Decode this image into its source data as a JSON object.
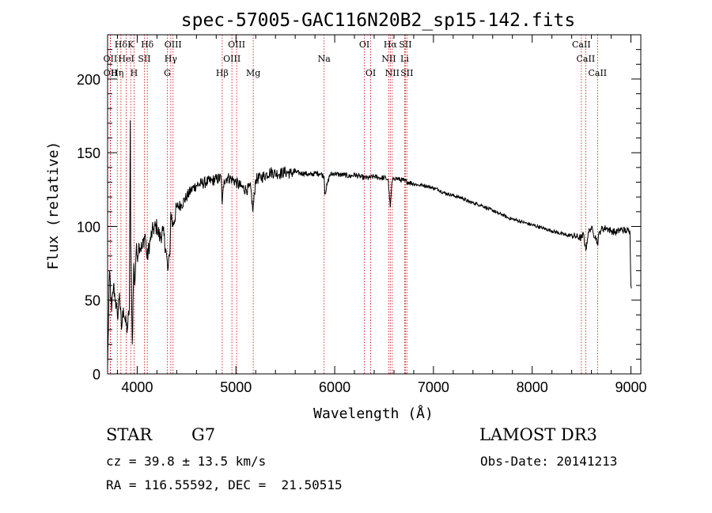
{
  "chart_data": {
    "type": "line",
    "title": "spec-57005-GAC116N20B2_sp15-142.fits",
    "xlabel": "Wavelength (Å)",
    "ylabel": "Flux (relative)",
    "xlim": [
      3700,
      9100
    ],
    "ylim": [
      0,
      230
    ],
    "xticks": [
      4000,
      5000,
      6000,
      7000,
      8000,
      9000
    ],
    "yticks": [
      0,
      50,
      100,
      150,
      200
    ],
    "spectrum": {
      "x": [
        3700,
        3720,
        3740,
        3760,
        3780,
        3800,
        3820,
        3840,
        3860,
        3880,
        3900,
        3920,
        3930,
        3935,
        3950,
        3965,
        3975,
        3990,
        4000,
        4020,
        4050,
        4080,
        4100,
        4130,
        4160,
        4200,
        4230,
        4260,
        4290,
        4310,
        4330,
        4340,
        4360,
        4400,
        4450,
        4500,
        4550,
        4600,
        4650,
        4700,
        4750,
        4800,
        4850,
        4861,
        4880,
        4920,
        4960,
        5000,
        5050,
        5100,
        5150,
        5172,
        5200,
        5250,
        5300,
        5350,
        5400,
        5450,
        5500,
        5550,
        5600,
        5650,
        5700,
        5750,
        5800,
        5850,
        5893,
        5900,
        5950,
        6000,
        6050,
        6100,
        6150,
        6200,
        6250,
        6300,
        6350,
        6400,
        6450,
        6500,
        6540,
        6563,
        6580,
        6600,
        6650,
        6700,
        6750,
        6800,
        6850,
        6900,
        6950,
        7000,
        7050,
        7100,
        7150,
        7200,
        7250,
        7300,
        7350,
        7400,
        7450,
        7500,
        7550,
        7600,
        7650,
        7700,
        7750,
        7800,
        7850,
        7900,
        7950,
        8000,
        8050,
        8100,
        8150,
        8200,
        8250,
        8300,
        8350,
        8400,
        8450,
        8500,
        8520,
        8542,
        8560,
        8580,
        8600,
        8620,
        8640,
        8662,
        8680,
        8700,
        8750,
        8800,
        8850,
        8900,
        8950,
        8990,
        9000,
        9005
      ],
      "y": [
        5,
        70,
        42,
        60,
        50,
        38,
        55,
        30,
        45,
        35,
        30,
        45,
        172,
        90,
        20,
        75,
        60,
        85,
        80,
        88,
        85,
        95,
        78,
        90,
        98,
        100,
        92,
        97,
        85,
        70,
        80,
        110,
        100,
        113,
        115,
        120,
        125,
        128,
        129,
        130,
        131,
        132,
        133,
        115,
        132,
        133,
        132,
        130,
        127,
        125,
        126,
        110,
        132,
        133,
        135,
        137,
        136,
        136,
        137,
        136,
        137,
        136,
        136,
        135,
        136,
        136,
        134,
        122,
        135,
        136,
        135,
        135,
        134,
        135,
        134,
        133,
        133,
        134,
        133,
        133,
        132,
        113,
        130,
        133,
        132,
        131,
        130,
        129,
        128,
        128,
        127,
        126,
        125,
        123,
        122,
        121,
        120,
        119,
        117,
        116,
        115,
        114,
        112,
        111,
        109,
        108,
        106,
        105,
        104,
        103,
        102,
        101,
        100,
        99,
        98,
        97,
        96,
        95,
        94,
        94,
        93,
        92,
        95,
        84,
        92,
        98,
        99,
        95,
        94,
        88,
        96,
        98,
        99,
        97,
        96,
        98,
        97,
        97,
        60,
        58
      ]
    },
    "lines": [
      {
        "label": "Hδ",
        "x": 3835,
        "row": 1
      },
      {
        "label": "K",
        "x": 3934,
        "row": 1
      },
      {
        "label": "Hδ",
        "x": 4102,
        "row": 1
      },
      {
        "label": "OIII",
        "x": 4363,
        "row": 1
      },
      {
        "label": "OIII",
        "x": 5007,
        "row": 1
      },
      {
        "label": "OI",
        "x": 6300,
        "row": 1
      },
      {
        "label": "Hα",
        "x": 6563,
        "row": 1
      },
      {
        "label": "SII",
        "x": 6716,
        "row": 1
      },
      {
        "label": "CaII",
        "x": 8498,
        "row": 1
      },
      {
        "label": "OII",
        "x": 3727,
        "row": 2
      },
      {
        "label": "HeI",
        "x": 3889,
        "row": 2
      },
      {
        "label": "SII",
        "x": 4072,
        "row": 2
      },
      {
        "label": "Hγ",
        "x": 4340,
        "row": 2
      },
      {
        "label": "OIII",
        "x": 4959,
        "row": 2
      },
      {
        "label": "Na",
        "x": 5893,
        "row": 2
      },
      {
        "label": "NII",
        "x": 6548,
        "row": 2
      },
      {
        "label": "Li",
        "x": 6708,
        "row": 2
      },
      {
        "label": "CaII",
        "x": 8542,
        "row": 2
      },
      {
        "label": "OII",
        "x": 3729,
        "row": 3
      },
      {
        "label": "Hη",
        "x": 3798,
        "row": 3
      },
      {
        "label": "H",
        "x": 3968,
        "row": 3
      },
      {
        "label": "G",
        "x": 4305,
        "row": 3
      },
      {
        "label": "Hβ",
        "x": 4861,
        "row": 3
      },
      {
        "label": "Mg",
        "x": 5175,
        "row": 3
      },
      {
        "label": "OI",
        "x": 6364,
        "row": 3
      },
      {
        "label": "NII",
        "x": 6583,
        "row": 3
      },
      {
        "label": "SII",
        "x": 6731,
        "row": 3
      },
      {
        "label": "CaII",
        "x": 8662,
        "row": 3
      }
    ],
    "marker_lines": [
      3727,
      3729,
      3798,
      3835,
      3889,
      3934,
      3968,
      4072,
      4102,
      4305,
      4340,
      4363,
      4861,
      4959,
      5007,
      5175,
      5893,
      6300,
      6364,
      6548,
      6563,
      6583,
      6708,
      6716,
      6731,
      8498,
      8542,
      8662
    ],
    "line_color": "#000000",
    "marker_color": "#cc0000"
  },
  "info": {
    "class": "STAR",
    "subclass": "G7",
    "survey": "LAMOST DR3",
    "cz": "cz = 39.8 ± 13.5 km/s",
    "obs_date": "Obs-Date: 20141213",
    "radec": "RA = 116.55592, DEC =  21.50515"
  }
}
